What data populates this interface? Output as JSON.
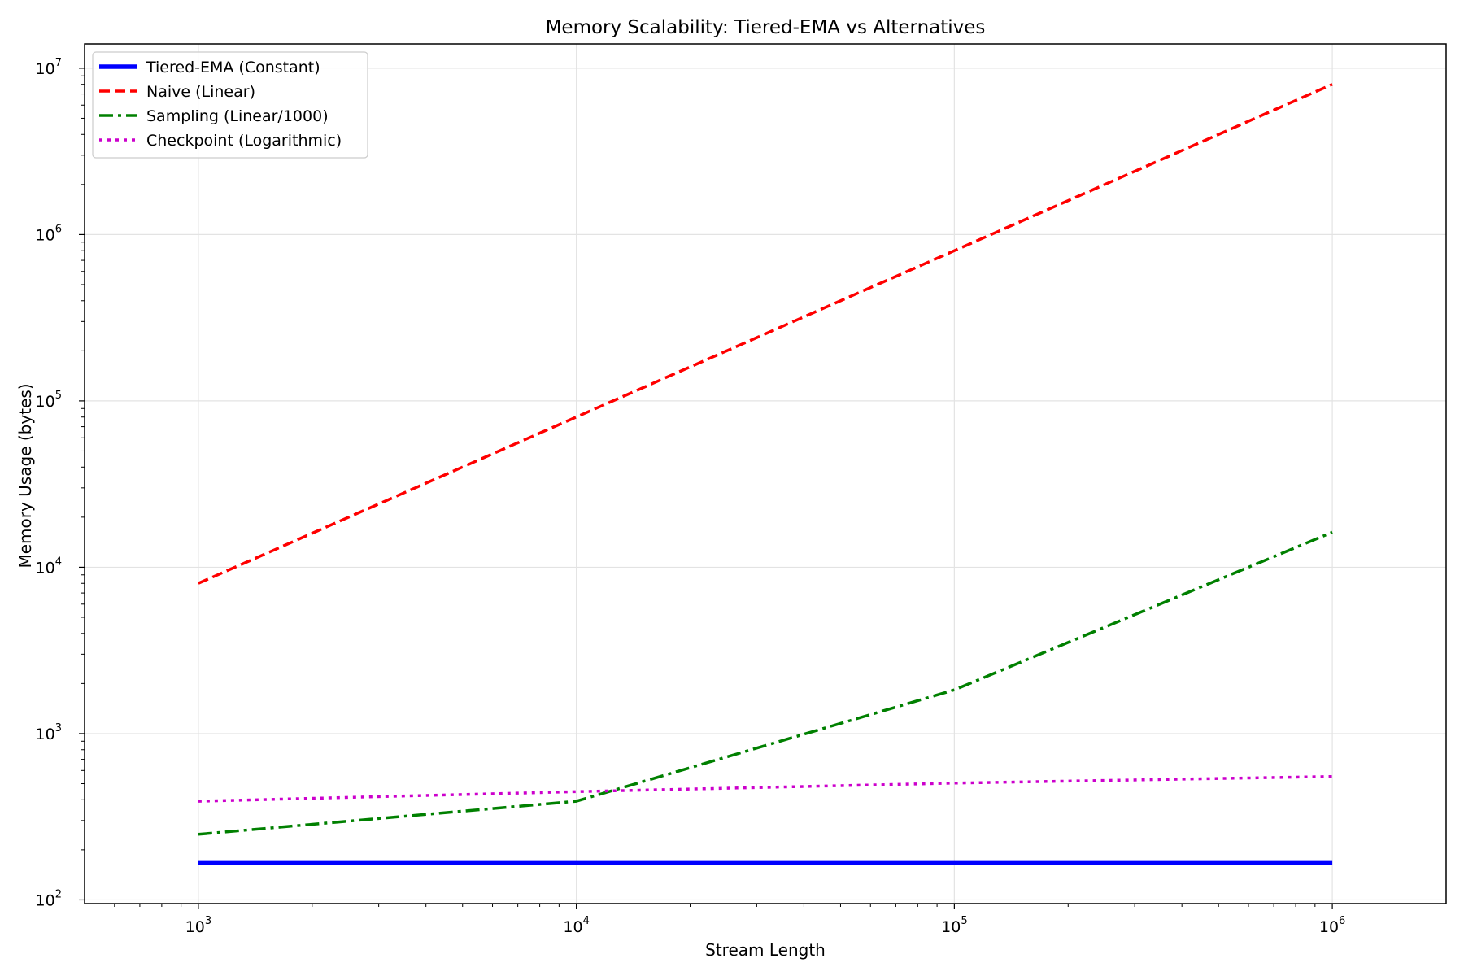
{
  "chart_data": {
    "type": "line",
    "title": "Memory Scalability: Tiered-EMA vs Alternatives",
    "xlabel": "Stream Length",
    "ylabel": "Memory Usage (bytes)",
    "xscale": "log",
    "yscale": "log",
    "xlim": [
      500,
      2000000
    ],
    "ylim": [
      95,
      14000000
    ],
    "grid": true,
    "legend_position": "top-left",
    "x": [
      1000,
      10000,
      100000,
      1000000
    ],
    "x_ticks": [
      {
        "value": 1000,
        "base": "10",
        "exp": "3"
      },
      {
        "value": 10000,
        "base": "10",
        "exp": "4"
      },
      {
        "value": 100000,
        "base": "10",
        "exp": "5"
      },
      {
        "value": 1000000,
        "base": "10",
        "exp": "6"
      }
    ],
    "y_ticks": [
      {
        "value": 100,
        "base": "10",
        "exp": "2"
      },
      {
        "value": 1000,
        "base": "10",
        "exp": "3"
      },
      {
        "value": 10000,
        "base": "10",
        "exp": "4"
      },
      {
        "value": 100000,
        "base": "10",
        "exp": "5"
      },
      {
        "value": 1000000,
        "base": "10",
        "exp": "6"
      },
      {
        "value": 10000000,
        "base": "10",
        "exp": "7"
      }
    ],
    "series": [
      {
        "name": "Tiered-EMA (Constant)",
        "values": [
          168,
          168,
          168,
          168
        ],
        "color": "#0000ff",
        "style": "solid"
      },
      {
        "name": "Naive (Linear)",
        "values": [
          8000,
          80000,
          800000,
          8000000
        ],
        "color": "#ff0000",
        "style": "dashed"
      },
      {
        "name": "Sampling (Linear/1000)",
        "values": [
          248,
          392,
          1832,
          16232
        ],
        "color": "#008000",
        "style": "dashdot"
      },
      {
        "name": "Checkpoint (Logarithmic)",
        "values": [
          392,
          448,
          504,
          552
        ],
        "color": "#cc00cc",
        "style": "dotted"
      }
    ]
  }
}
